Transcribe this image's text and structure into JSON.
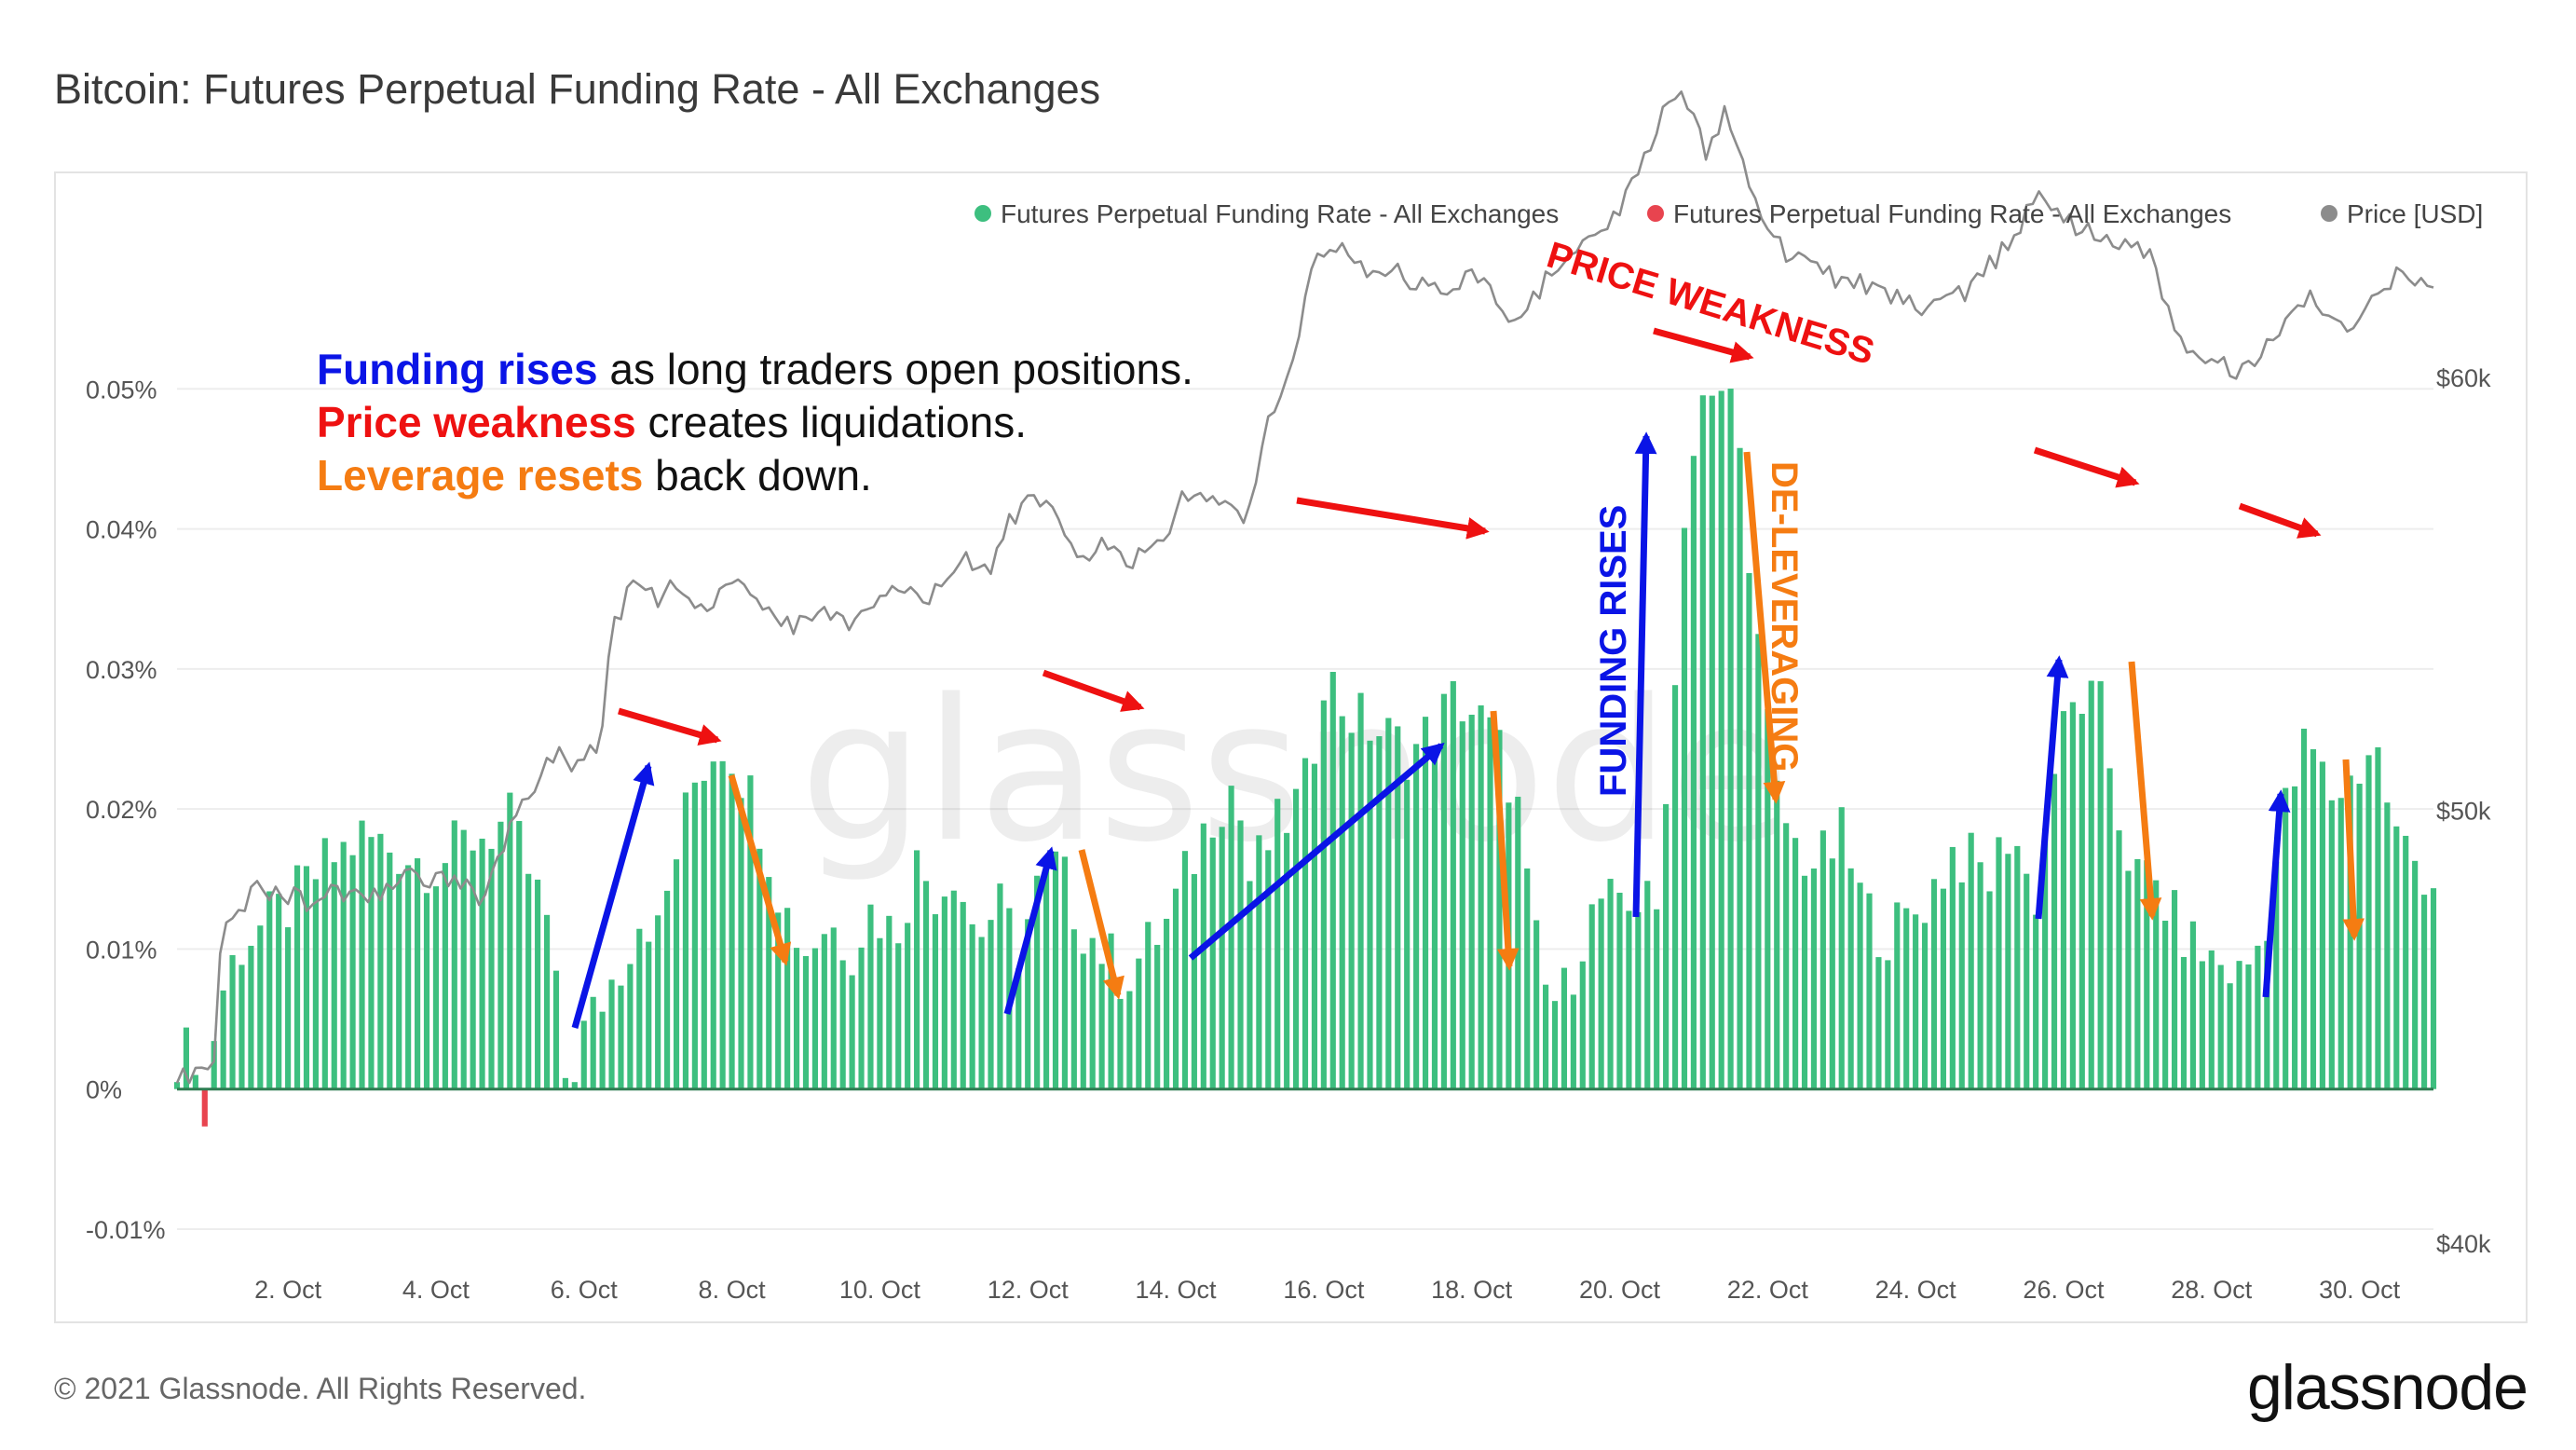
{
  "title": "Bitcoin: Futures Perpetual Funding Rate - All Exchanges",
  "footer": {
    "copyright": "© 2021 Glassnode. All Rights Reserved.",
    "brand": "glassnode"
  },
  "watermark": "glassnode",
  "colors": {
    "positive": "#3dbf7f",
    "negative": "#e8444f",
    "price": "#8c8c8c",
    "blue": "#0a14e6",
    "red": "#ee1111",
    "orange": "#f57c12",
    "zero_line": "#2f7d52"
  },
  "annotations": {
    "lines": [
      {
        "parts": [
          {
            "text": "Funding rises",
            "style": "blue"
          },
          {
            "text": " as long traders open positions.",
            "style": "plain"
          }
        ]
      },
      {
        "parts": [
          {
            "text": "Price weakness",
            "style": "red"
          },
          {
            "text": " creates liquidations.",
            "style": "plain"
          }
        ]
      },
      {
        "parts": [
          {
            "text": "Leverage resets",
            "style": "orange"
          },
          {
            "text": " back down.",
            "style": "plain"
          }
        ]
      }
    ],
    "price_weakness_label": "PRICE WEAKNESS",
    "funding_rises_label": "FUNDING RISES",
    "deleveraging_label": "DE-LEVERAGING"
  },
  "chart_data": {
    "type": "bar",
    "title": "Bitcoin: Futures Perpetual Funding Rate - All Exchanges",
    "x_range_days": [
      0.5,
      31.0
    ],
    "y_left": {
      "min": -0.011,
      "max": 0.061,
      "ticks": [
        -0.0001,
        0,
        0.0001,
        0.0002,
        0.0003,
        0.0004,
        0.0005
      ],
      "tick_labels": [
        "-0.01%",
        "0%",
        "0.01%",
        "0.02%",
        "0.03%",
        "0.04%",
        "0.05%"
      ]
    },
    "y_right": {
      "min": 40000,
      "max": 63300,
      "ticks": [
        40000,
        50000,
        60000
      ],
      "tick_labels": [
        "$40k",
        "$50k",
        "$60k"
      ],
      "scale": "approx"
    },
    "x_ticks": [
      {
        "day": 2,
        "label": "2. Oct"
      },
      {
        "day": 4,
        "label": "4. Oct"
      },
      {
        "day": 6,
        "label": "6. Oct"
      },
      {
        "day": 8,
        "label": "8. Oct"
      },
      {
        "day": 10,
        "label": "10. Oct"
      },
      {
        "day": 12,
        "label": "12. Oct"
      },
      {
        "day": 14,
        "label": "14. Oct"
      },
      {
        "day": 16,
        "label": "16. Oct"
      },
      {
        "day": 18,
        "label": "18. Oct"
      },
      {
        "day": 20,
        "label": "20. Oct"
      },
      {
        "day": 22,
        "label": "22. Oct"
      },
      {
        "day": 24,
        "label": "24. Oct"
      },
      {
        "day": 26,
        "label": "26. Oct"
      },
      {
        "day": 28,
        "label": "28. Oct"
      },
      {
        "day": 30,
        "label": "30. Oct"
      }
    ],
    "legend": [
      {
        "label": "Futures Perpetual Funding Rate - All Exchanges",
        "color": "#3dbf7f"
      },
      {
        "label": "Futures Perpetual Funding Rate - All Exchanges",
        "color": "#e8444f"
      },
      {
        "label": "Price [USD]",
        "color": "#8c8c8c"
      }
    ],
    "funding_rate_pct": {
      "days": [
        0.5,
        0.75,
        0.85,
        1.0,
        1.1,
        1.2,
        1.3,
        1.5,
        1.75,
        2.0,
        2.5,
        3.0,
        3.5,
        4.0,
        4.5,
        5.0,
        5.5,
        5.75,
        5.85,
        6.0,
        6.2,
        6.5,
        6.8,
        7.0,
        7.3,
        7.5,
        7.7,
        7.9,
        8.1,
        8.4,
        8.7,
        9.0,
        9.3,
        9.6,
        9.9,
        10.2,
        10.5,
        10.8,
        11.0,
        11.3,
        11.6,
        11.9,
        12.1,
        12.4,
        12.7,
        13.0,
        13.3,
        13.6,
        13.9,
        14.2,
        14.5,
        14.8,
        15.0,
        15.3,
        15.6,
        15.8,
        16.0,
        16.3,
        16.6,
        16.9,
        17.2,
        17.5,
        17.8,
        18.0,
        18.3,
        18.6,
        18.8,
        19.0,
        19.2,
        19.5,
        19.8,
        20.0,
        20.2,
        20.4,
        20.5,
        20.6,
        20.8,
        20.95,
        21.1,
        21.3,
        21.5,
        21.7,
        21.9,
        22.1,
        22.4,
        22.7,
        23.0,
        23.3,
        23.6,
        23.9,
        24.2,
        24.5,
        24.8,
        25.0,
        25.3,
        25.6,
        25.9,
        26.2,
        26.5,
        26.8,
        27.0,
        27.2,
        27.5,
        27.8,
        28.1,
        28.4,
        28.7,
        29.0,
        29.3,
        29.6,
        29.9,
        30.2,
        30.5,
        30.8,
        31.0
      ],
      "values": [
        0.002,
        0.003,
        -0.004,
        0.004,
        0.007,
        0.008,
        0.01,
        0.011,
        0.012,
        0.013,
        0.016,
        0.018,
        0.017,
        0.016,
        0.018,
        0.019,
        0.012,
        0.001,
        0.0,
        0.004,
        0.006,
        0.009,
        0.013,
        0.011,
        0.018,
        0.022,
        0.024,
        0.025,
        0.023,
        0.019,
        0.013,
        0.01,
        0.012,
        0.01,
        0.013,
        0.011,
        0.016,
        0.014,
        0.016,
        0.011,
        0.013,
        0.01,
        0.014,
        0.016,
        0.012,
        0.01,
        0.008,
        0.01,
        0.012,
        0.016,
        0.02,
        0.022,
        0.015,
        0.018,
        0.02,
        0.022,
        0.03,
        0.027,
        0.026,
        0.025,
        0.024,
        0.026,
        0.028,
        0.027,
        0.025,
        0.021,
        0.012,
        0.007,
        0.006,
        0.011,
        0.014,
        0.012,
        0.013,
        0.016,
        0.011,
        0.018,
        0.035,
        0.045,
        0.05,
        0.048,
        0.05,
        0.042,
        0.03,
        0.021,
        0.017,
        0.016,
        0.018,
        0.013,
        0.011,
        0.012,
        0.014,
        0.017,
        0.016,
        0.015,
        0.019,
        0.013,
        0.024,
        0.028,
        0.027,
        0.018,
        0.015,
        0.015,
        0.012,
        0.01,
        0.009,
        0.008,
        0.011,
        0.02,
        0.025,
        0.021,
        0.022,
        0.025,
        0.018,
        0.016,
        0.015
      ]
    },
    "price_usd": {
      "days": [
        0.5,
        0.8,
        1.0,
        1.1,
        1.3,
        1.6,
        2.0,
        2.3,
        2.6,
        3.0,
        3.3,
        3.6,
        4.0,
        4.3,
        4.6,
        5.0,
        5.3,
        5.6,
        5.8,
        6.0,
        6.2,
        6.4,
        6.6,
        6.8,
        7.0,
        7.3,
        7.6,
        7.8,
        8.0,
        8.2,
        8.5,
        8.8,
        9.1,
        9.4,
        9.7,
        10.0,
        10.3,
        10.6,
        10.9,
        11.2,
        11.5,
        11.8,
        12.0,
        12.3,
        12.6,
        12.8,
        13.0,
        13.3,
        13.6,
        13.9,
        14.2,
        14.5,
        14.8,
        15.0,
        15.2,
        15.4,
        15.6,
        15.8,
        16.0,
        16.3,
        16.6,
        16.9,
        17.2,
        17.5,
        17.8,
        18.0,
        18.3,
        18.6,
        18.9,
        19.2,
        19.5,
        19.8,
        20.1,
        20.3,
        20.5,
        20.6,
        20.8,
        21.0,
        21.2,
        21.4,
        21.6,
        21.8,
        22.0,
        22.3,
        22.6,
        22.9,
        23.2,
        23.5,
        23.8,
        24.1,
        24.4,
        24.7,
        25.0,
        25.3,
        25.6,
        25.9,
        26.2,
        26.5,
        26.7,
        27.0,
        27.2,
        27.5,
        27.8,
        28.1,
        28.4,
        28.7,
        29.0,
        29.3,
        29.6,
        29.9,
        30.2,
        30.5,
        30.8,
        31.0
      ],
      "values": [
        43800,
        43900,
        44200,
        47200,
        47700,
        48200,
        48000,
        47900,
        48100,
        48000,
        48100,
        48600,
        48300,
        48500,
        48000,
        49500,
        50500,
        51300,
        51100,
        51200,
        51500,
        54200,
        55000,
        55200,
        54800,
        55300,
        54600,
        54900,
        55400,
        55000,
        54800,
        54200,
        54500,
        54600,
        54300,
        55000,
        55200,
        54700,
        55400,
        55800,
        55600,
        56800,
        57200,
        56900,
        56300,
        55700,
        56500,
        55600,
        56000,
        56600,
        57500,
        57200,
        56800,
        56900,
        58800,
        59400,
        60300,
        62700,
        63000,
        62900,
        62400,
        62500,
        62200,
        62000,
        62100,
        62400,
        61800,
        61300,
        62000,
        62600,
        63000,
        63300,
        64200,
        65000,
        65800,
        66500,
        66400,
        66300,
        65000,
        66300,
        65500,
        64200,
        63500,
        62800,
        62500,
        62300,
        62200,
        62000,
        61800,
        61500,
        61800,
        62000,
        62600,
        63200,
        64200,
        63900,
        63400,
        63400,
        63200,
        62900,
        62700,
        61000,
        60600,
        60300,
        60100,
        60700,
        61300,
        61800,
        61500,
        61200,
        62100,
        62300,
        62200,
        62000
      ]
    }
  }
}
